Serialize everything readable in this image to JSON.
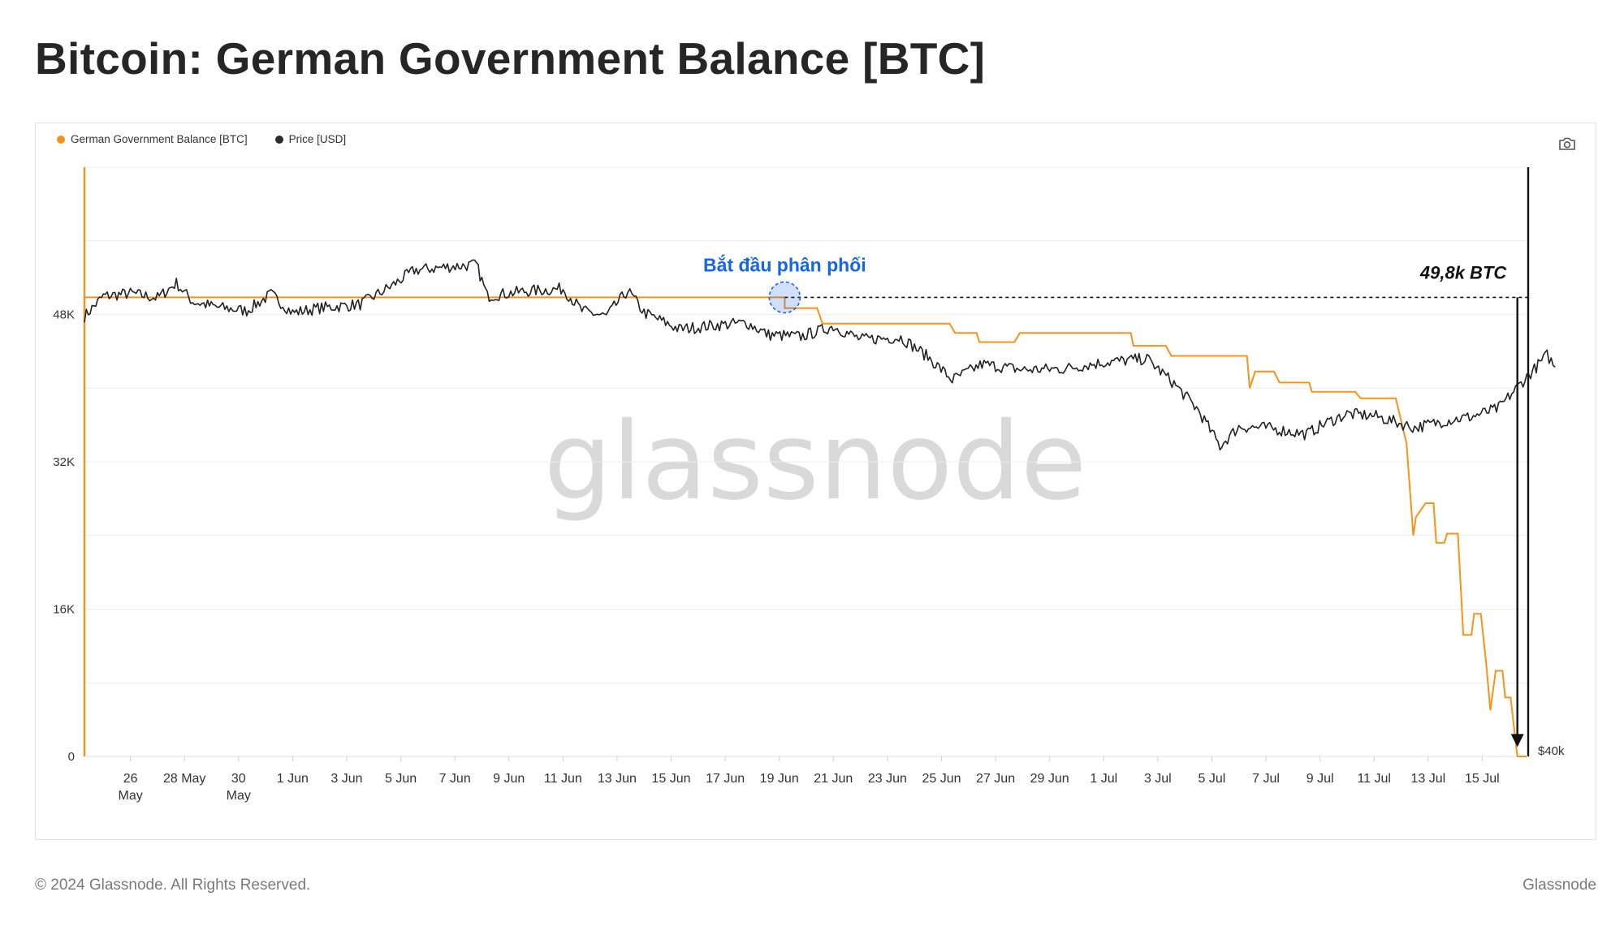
{
  "page": {
    "title": "Bitcoin: German Government Balance [BTC]",
    "footer_copyright": "© 2024 Glassnode. All Rights Reserved.",
    "footer_brand": "Glassnode",
    "watermark": "glassnode"
  },
  "toolbar": {
    "camera_icon": "camera-icon"
  },
  "colors": {
    "balance": "#f7931a",
    "price": "#222222",
    "annotation_blue": "#1565e8",
    "grid": "#ececec"
  },
  "chart_data": {
    "type": "line",
    "title": "Bitcoin: German Government Balance [BTC]",
    "legend_position": "top-left",
    "grid": true,
    "x_ticks": [
      {
        "label": "26",
        "sub": "May",
        "day": 1
      },
      {
        "label": "28 May",
        "sub": "",
        "day": 3
      },
      {
        "label": "30",
        "sub": "May",
        "day": 5
      },
      {
        "label": "1 Jun",
        "sub": "",
        "day": 7
      },
      {
        "label": "3 Jun",
        "sub": "",
        "day": 9
      },
      {
        "label": "5 Jun",
        "sub": "",
        "day": 11
      },
      {
        "label": "7 Jun",
        "sub": "",
        "day": 13
      },
      {
        "label": "9 Jun",
        "sub": "",
        "day": 15
      },
      {
        "label": "11 Jun",
        "sub": "",
        "day": 17
      },
      {
        "label": "13 Jun",
        "sub": "",
        "day": 19
      },
      {
        "label": "15 Jun",
        "sub": "",
        "day": 21
      },
      {
        "label": "17 Jun",
        "sub": "",
        "day": 23
      },
      {
        "label": "19 Jun",
        "sub": "",
        "day": 25
      },
      {
        "label": "21 Jun",
        "sub": "",
        "day": 27
      },
      {
        "label": "23 Jun",
        "sub": "",
        "day": 29
      },
      {
        "label": "25 Jun",
        "sub": "",
        "day": 31
      },
      {
        "label": "27 Jun",
        "sub": "",
        "day": 33
      },
      {
        "label": "29 Jun",
        "sub": "",
        "day": 35
      },
      {
        "label": "1 Jul",
        "sub": "",
        "day": 37
      },
      {
        "label": "3 Jul",
        "sub": "",
        "day": 39
      },
      {
        "label": "5 Jul",
        "sub": "",
        "day": 41
      },
      {
        "label": "7 Jul",
        "sub": "",
        "day": 43
      },
      {
        "label": "9 Jul",
        "sub": "",
        "day": 45
      },
      {
        "label": "11 Jul",
        "sub": "",
        "day": 47
      },
      {
        "label": "13 Jul",
        "sub": "",
        "day": 49
      },
      {
        "label": "15 Jul",
        "sub": "",
        "day": 51
      }
    ],
    "x_range": [
      -0.7,
      52.7
    ],
    "y_left": {
      "ticks": [
        0,
        16000,
        32000,
        48000
      ],
      "tick_labels": [
        "0",
        "16K",
        "32K",
        "48K"
      ],
      "range": [
        0,
        64000
      ]
    },
    "y_right": {
      "tick_label": "$40k"
    },
    "series": [
      {
        "name": "German Government Balance [BTC]",
        "color": "#f7931a",
        "points": [
          {
            "day": -0.7,
            "value": 49858
          },
          {
            "day": 25.2,
            "value": 49858
          },
          {
            "day": 25.2,
            "value": 48700
          },
          {
            "day": 26.4,
            "value": 48700
          },
          {
            "day": 26.6,
            "value": 47000
          },
          {
            "day": 31.3,
            "value": 47000
          },
          {
            "day": 31.5,
            "value": 46000
          },
          {
            "day": 32.3,
            "value": 46000
          },
          {
            "day": 32.4,
            "value": 45000
          },
          {
            "day": 33.7,
            "value": 45000
          },
          {
            "day": 33.9,
            "value": 46000
          },
          {
            "day": 38.0,
            "value": 46000
          },
          {
            "day": 38.1,
            "value": 44600
          },
          {
            "day": 39.3,
            "value": 44600
          },
          {
            "day": 39.5,
            "value": 43500
          },
          {
            "day": 42.3,
            "value": 43500
          },
          {
            "day": 42.4,
            "value": 40000
          },
          {
            "day": 42.6,
            "value": 41800
          },
          {
            "day": 43.3,
            "value": 41800
          },
          {
            "day": 43.5,
            "value": 40600
          },
          {
            "day": 44.6,
            "value": 40600
          },
          {
            "day": 44.7,
            "value": 39600
          },
          {
            "day": 46.3,
            "value": 39600
          },
          {
            "day": 46.5,
            "value": 38900
          },
          {
            "day": 47.8,
            "value": 38900
          },
          {
            "day": 48.2,
            "value": 34000
          },
          {
            "day": 48.45,
            "value": 24000
          },
          {
            "day": 48.55,
            "value": 26000
          },
          {
            "day": 48.9,
            "value": 27500
          },
          {
            "day": 49.2,
            "value": 27500
          },
          {
            "day": 49.3,
            "value": 23200
          },
          {
            "day": 49.6,
            "value": 23200
          },
          {
            "day": 49.7,
            "value": 24200
          },
          {
            "day": 50.1,
            "value": 24200
          },
          {
            "day": 50.3,
            "value": 13200
          },
          {
            "day": 50.6,
            "value": 13200
          },
          {
            "day": 50.7,
            "value": 15500
          },
          {
            "day": 50.95,
            "value": 15500
          },
          {
            "day": 51.15,
            "value": 10000
          },
          {
            "day": 51.3,
            "value": 5000
          },
          {
            "day": 51.5,
            "value": 9300
          },
          {
            "day": 51.75,
            "value": 9300
          },
          {
            "day": 51.85,
            "value": 6400
          },
          {
            "day": 52.05,
            "value": 6400
          },
          {
            "day": 52.15,
            "value": 3800
          },
          {
            "day": 52.3,
            "value": 0
          },
          {
            "day": 52.65,
            "value": 0
          }
        ]
      },
      {
        "name": "Price [USD]",
        "color": "#222222",
        "unit": "USD",
        "points": [
          {
            "day": -0.7,
            "value": 47800
          },
          {
            "day": 0.0,
            "value": 50000
          },
          {
            "day": 1.0,
            "value": 50300
          },
          {
            "day": 2.0,
            "value": 49800
          },
          {
            "day": 2.7,
            "value": 51400
          },
          {
            "day": 3.3,
            "value": 49400
          },
          {
            "day": 4.2,
            "value": 48800
          },
          {
            "day": 5.3,
            "value": 48400
          },
          {
            "day": 6.2,
            "value": 50200
          },
          {
            "day": 7.0,
            "value": 48200
          },
          {
            "day": 8.0,
            "value": 48700
          },
          {
            "day": 9.5,
            "value": 49100
          },
          {
            "day": 10.6,
            "value": 51000
          },
          {
            "day": 11.5,
            "value": 52800
          },
          {
            "day": 12.8,
            "value": 53200
          },
          {
            "day": 13.8,
            "value": 53400
          },
          {
            "day": 14.2,
            "value": 50000
          },
          {
            "day": 15.5,
            "value": 50500
          },
          {
            "day": 17.0,
            "value": 50800
          },
          {
            "day": 17.7,
            "value": 48400
          },
          {
            "day": 18.6,
            "value": 47800
          },
          {
            "day": 19.4,
            "value": 50600
          },
          {
            "day": 20.0,
            "value": 48200
          },
          {
            "day": 21.3,
            "value": 46400
          },
          {
            "day": 22.5,
            "value": 46800
          },
          {
            "day": 23.8,
            "value": 47100
          },
          {
            "day": 24.6,
            "value": 45800
          },
          {
            "day": 25.8,
            "value": 45600
          },
          {
            "day": 27.0,
            "value": 46700
          },
          {
            "day": 28.0,
            "value": 45300
          },
          {
            "day": 29.5,
            "value": 45500
          },
          {
            "day": 30.5,
            "value": 43400
          },
          {
            "day": 31.4,
            "value": 40900
          },
          {
            "day": 32.5,
            "value": 42600
          },
          {
            "day": 34.0,
            "value": 42000
          },
          {
            "day": 35.5,
            "value": 42100
          },
          {
            "day": 37.0,
            "value": 42800
          },
          {
            "day": 38.6,
            "value": 43200
          },
          {
            "day": 39.6,
            "value": 40500
          },
          {
            "day": 40.5,
            "value": 37600
          },
          {
            "day": 41.3,
            "value": 33700
          },
          {
            "day": 42.0,
            "value": 35800
          },
          {
            "day": 43.0,
            "value": 35700
          },
          {
            "day": 44.5,
            "value": 35000
          },
          {
            "day": 45.2,
            "value": 36200
          },
          {
            "day": 46.0,
            "value": 37200
          },
          {
            "day": 47.0,
            "value": 37000
          },
          {
            "day": 48.5,
            "value": 35700
          },
          {
            "day": 49.7,
            "value": 36500
          },
          {
            "day": 50.6,
            "value": 36900
          },
          {
            "day": 51.6,
            "value": 37800
          },
          {
            "day": 52.3,
            "value": 40100
          },
          {
            "day": 53.0,
            "value": 42300
          },
          {
            "day": 53.4,
            "value": 43600
          },
          {
            "day": 53.7,
            "value": 42300
          }
        ]
      }
    ],
    "annotations": {
      "start_distribution": {
        "text": "Bắt đầu phân phối",
        "day": 25.2,
        "value": 49858
      },
      "dashed_level": {
        "value": 49858,
        "from_day": 25.2,
        "to_day": 52.7
      },
      "arrow_label": {
        "text": "49,8k BTC",
        "day": 50.3
      },
      "arrow": {
        "day": 52.3,
        "from_value": 49858,
        "to_value": 1200
      }
    }
  }
}
